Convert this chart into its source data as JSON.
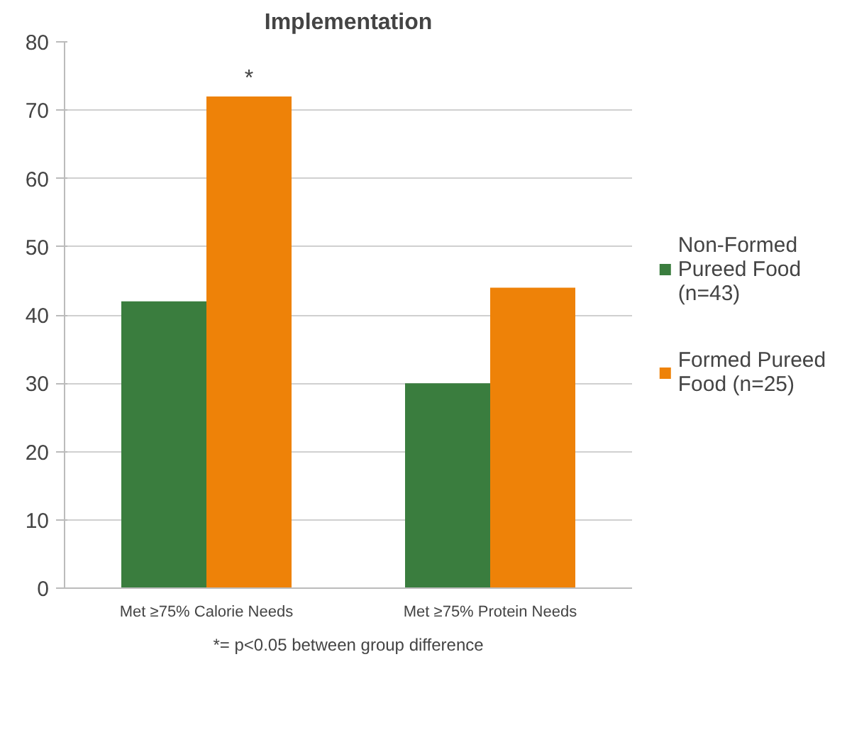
{
  "chart_data": {
    "type": "bar",
    "title": "Implementation",
    "categories": [
      "Met ≥75% Calorie Needs",
      "Met ≥75% Protein Needs"
    ],
    "series": [
      {
        "name": "Non-Formed Pureed Food (n=43)",
        "color": "#3a7d3e",
        "values": [
          42,
          30
        ]
      },
      {
        "name": "Formed Pureed Food (n=25)",
        "color": "#ee8208",
        "values": [
          72,
          44
        ]
      }
    ],
    "ylim": [
      0,
      80
    ],
    "yticks": [
      0,
      10,
      20,
      30,
      40,
      50,
      60,
      70,
      80
    ],
    "grid": "y",
    "legend": "right",
    "annotations": [
      {
        "text": "*",
        "x": "Met ≥75% Calorie Needs",
        "y": 72
      },
      "*= p<0.05 between group difference"
    ]
  }
}
